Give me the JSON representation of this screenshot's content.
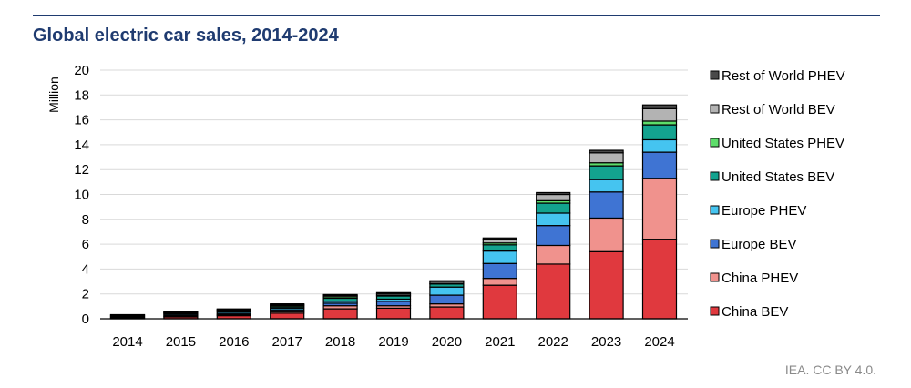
{
  "title": "Global electric car sales, 2014-2024",
  "credit": "IEA. CC BY 4.0.",
  "chart_data": {
    "type": "bar",
    "stacked": true,
    "title": "Global electric car sales, 2014-2024",
    "ylabel": "Million",
    "xlabel": "",
    "ylim": [
      0,
      20
    ],
    "yticks": [
      0,
      2,
      4,
      6,
      8,
      10,
      12,
      14,
      16,
      18,
      20
    ],
    "grid": true,
    "legend_position": "right",
    "categories": [
      "2014",
      "2015",
      "2016",
      "2017",
      "2018",
      "2019",
      "2020",
      "2021",
      "2022",
      "2023",
      "2024"
    ],
    "series": [
      {
        "name": "China BEV",
        "color": "#e0393e",
        "values": [
          0.05,
          0.15,
          0.25,
          0.45,
          0.8,
          0.85,
          0.95,
          2.7,
          4.4,
          5.4,
          6.4
        ]
      },
      {
        "name": "China PHEV",
        "color": "#f0928d",
        "values": [
          0.02,
          0.05,
          0.08,
          0.12,
          0.25,
          0.2,
          0.25,
          0.55,
          1.5,
          2.7,
          4.9
        ]
      },
      {
        "name": "Europe BEV",
        "color": "#3f74d3",
        "values": [
          0.06,
          0.09,
          0.1,
          0.15,
          0.2,
          0.35,
          0.7,
          1.2,
          1.6,
          2.1,
          2.1
        ]
      },
      {
        "name": "Europe PHEV",
        "color": "#45c4f0",
        "values": [
          0.04,
          0.1,
          0.12,
          0.14,
          0.15,
          0.18,
          0.65,
          1.0,
          1.0,
          1.0,
          1.0
        ]
      },
      {
        "name": "United States BEV",
        "color": "#13a38f",
        "values": [
          0.06,
          0.07,
          0.08,
          0.1,
          0.25,
          0.25,
          0.25,
          0.5,
          0.8,
          1.1,
          1.2
        ]
      },
      {
        "name": "United States PHEV",
        "color": "#5ddd6a",
        "values": [
          0.05,
          0.04,
          0.07,
          0.1,
          0.12,
          0.08,
          0.05,
          0.15,
          0.2,
          0.25,
          0.3
        ]
      },
      {
        "name": "Rest of World BEV",
        "color": "#b3b3b3",
        "values": [
          0.03,
          0.03,
          0.05,
          0.08,
          0.1,
          0.12,
          0.15,
          0.3,
          0.5,
          0.8,
          1.0
        ]
      },
      {
        "name": "Rest of World PHEV",
        "color": "#4a4a4a",
        "values": [
          0.02,
          0.03,
          0.04,
          0.06,
          0.08,
          0.07,
          0.06,
          0.1,
          0.15,
          0.2,
          0.3
        ]
      }
    ]
  }
}
